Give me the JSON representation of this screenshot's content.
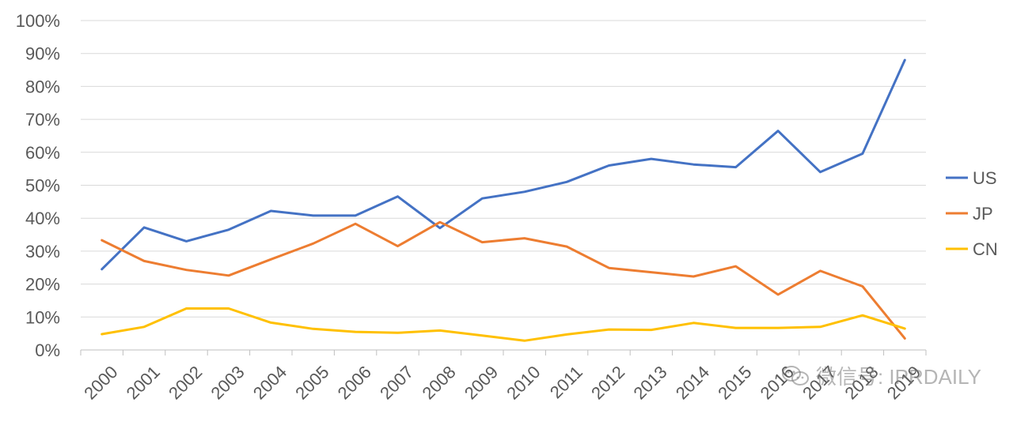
{
  "chart_data": {
    "type": "line",
    "categories": [
      "2000",
      "2001",
      "2002",
      "2003",
      "2004",
      "2005",
      "2006",
      "2007",
      "2008",
      "2009",
      "2010",
      "2011",
      "2012",
      "2013",
      "2014",
      "2015",
      "2016",
      "2017",
      "2018",
      "2019"
    ],
    "series": [
      {
        "name": "US",
        "color": "#4472C4",
        "values": [
          24.5,
          37.2,
          33.0,
          36.5,
          42.2,
          40.8,
          40.8,
          46.6,
          37.0,
          46.0,
          48.0,
          51.0,
          56.0,
          58.0,
          56.3,
          55.5,
          66.5,
          54.0,
          59.6,
          88.0
        ]
      },
      {
        "name": "JP",
        "color": "#ED7D31",
        "values": [
          33.3,
          27.0,
          24.3,
          22.6,
          27.5,
          32.3,
          38.3,
          31.5,
          38.8,
          32.7,
          33.9,
          31.4,
          24.9,
          23.6,
          22.3,
          25.4,
          16.8,
          24.0,
          19.3,
          3.5
        ]
      },
      {
        "name": "CN",
        "color": "#FFC000",
        "values": [
          4.8,
          7.0,
          12.6,
          12.6,
          8.3,
          6.4,
          5.5,
          5.2,
          5.9,
          4.4,
          2.8,
          4.7,
          6.2,
          6.1,
          8.2,
          6.7,
          6.7,
          7.0,
          10.5,
          6.5
        ]
      }
    ],
    "y_ticks": [
      "0%",
      "10%",
      "20%",
      "30%",
      "40%",
      "50%",
      "60%",
      "70%",
      "80%",
      "90%",
      "100%"
    ],
    "ylim": [
      0,
      100
    ],
    "legend_position": "right",
    "grid": true
  },
  "watermark": {
    "text": "微信号: IPRDAILY",
    "icon": "wechat-icon"
  },
  "colors": {
    "axis": "#BFBFBF",
    "grid": "#D9D9D9",
    "text": "#595959"
  }
}
